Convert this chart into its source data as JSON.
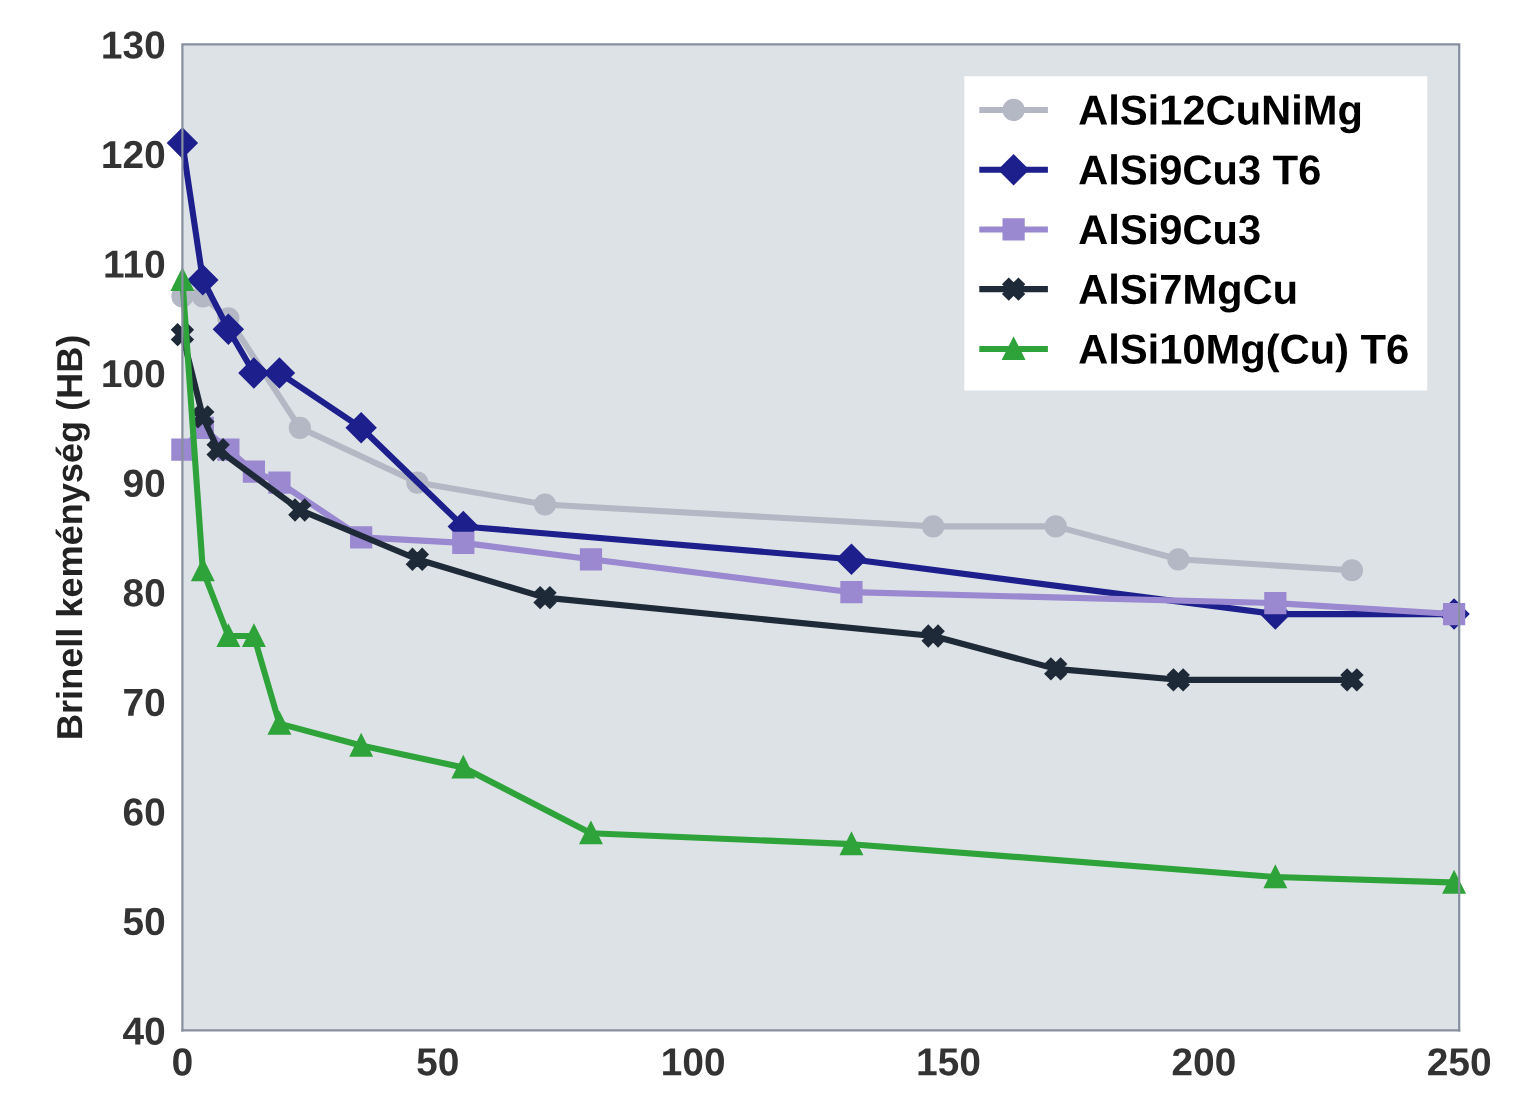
{
  "chart_data": {
    "type": "line",
    "ylabel": "Brinell keménység (HB)",
    "xlim": [
      0,
      250
    ],
    "xticks": [
      0,
      50,
      100,
      150,
      200,
      250
    ],
    "ylim": [
      40,
      130
    ],
    "yticks": [
      40,
      50,
      60,
      70,
      80,
      90,
      100,
      110,
      120,
      130
    ],
    "grid": false,
    "legend": "top right",
    "line_style": "solid",
    "series": [
      {
        "name": "AlSi12CuNiMg",
        "color": "#b4b8c4",
        "marker": "circle",
        "x": [
          0,
          4,
          9,
          23,
          46,
          71,
          147,
          171,
          195,
          229
        ],
        "values": [
          107,
          107,
          105,
          95,
          90,
          88,
          86,
          86,
          83,
          82
        ]
      },
      {
        "name": "AlSi9Cu3 T6",
        "color": "#1c1f8c",
        "marker": "diamond",
        "x": [
          0,
          4,
          9,
          14,
          19,
          35,
          55,
          131,
          214,
          249
        ],
        "values": [
          121,
          108.5,
          104,
          100,
          100,
          95,
          86,
          83,
          78,
          78
        ]
      },
      {
        "name": "AlSi9Cu3",
        "color": "#9a88d0",
        "marker": "square",
        "x": [
          0,
          4,
          9,
          14,
          19,
          35,
          55,
          80,
          131,
          214,
          249
        ],
        "values": [
          93,
          95,
          93,
          91,
          90,
          85,
          84.5,
          83,
          80,
          79,
          78
        ]
      },
      {
        "name": "AlSi7MgCu",
        "color": "#1e2a38",
        "marker": "cross",
        "x": [
          0,
          4,
          7,
          23,
          46,
          71,
          147,
          171,
          195,
          229
        ],
        "values": [
          103.5,
          96,
          93,
          87.5,
          83,
          79.5,
          76,
          73,
          72,
          72
        ]
      },
      {
        "name": "AlSi10Mg(Cu) T6",
        "color": "#2ea33a",
        "marker": "triangle",
        "x": [
          0,
          4,
          9,
          14,
          19,
          35,
          55,
          80,
          131,
          214,
          249
        ],
        "values": [
          108.5,
          82,
          76,
          76,
          68,
          66,
          64,
          58,
          57,
          54,
          53.5
        ]
      }
    ]
  }
}
